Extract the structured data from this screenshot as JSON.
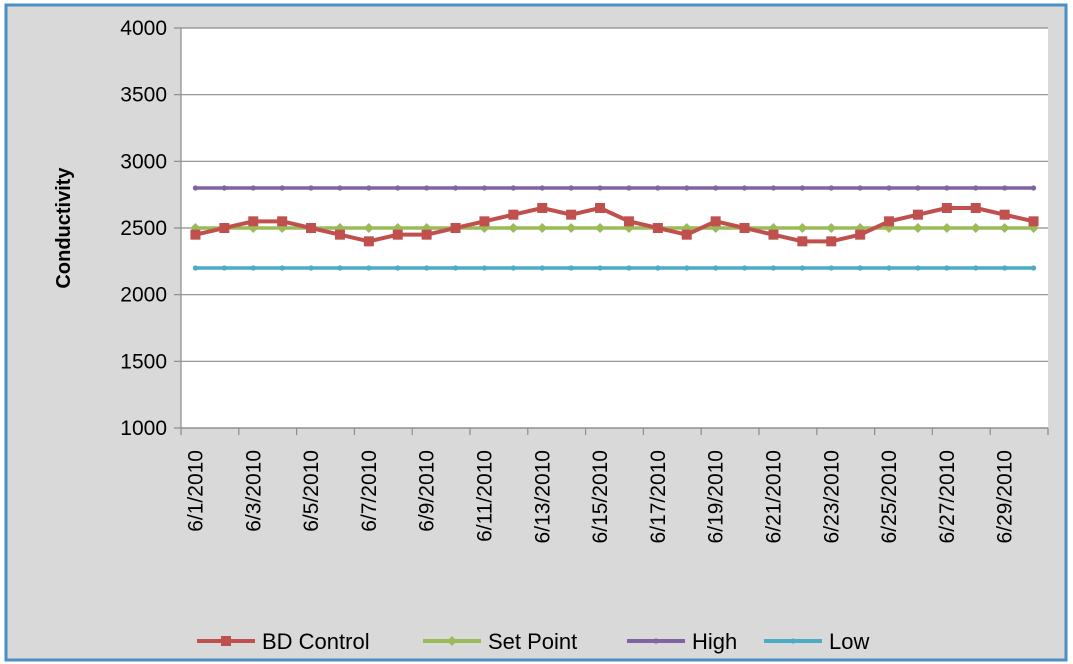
{
  "chart_data": {
    "type": "line",
    "title": "",
    "xlabel": "",
    "ylabel": "Conductivity",
    "ylim": [
      1000,
      4000
    ],
    "yticks": [
      1000,
      1500,
      2000,
      2500,
      3000,
      3500,
      4000
    ],
    "grid": "horizontal",
    "legend_position": "bottom",
    "x": [
      "6/1/2010",
      "6/2/2010",
      "6/3/2010",
      "6/4/2010",
      "6/5/2010",
      "6/6/2010",
      "6/7/2010",
      "6/8/2010",
      "6/9/2010",
      "6/10/2010",
      "6/11/2010",
      "6/12/2010",
      "6/13/2010",
      "6/14/2010",
      "6/15/2010",
      "6/16/2010",
      "6/17/2010",
      "6/18/2010",
      "6/19/2010",
      "6/20/2010",
      "6/21/2010",
      "6/22/2010",
      "6/23/2010",
      "6/24/2010",
      "6/25/2010",
      "6/26/2010",
      "6/27/2010",
      "6/28/2010",
      "6/29/2010",
      "6/30/2010"
    ],
    "xtick_labels": [
      "6/1/2010",
      "6/3/2010",
      "6/5/2010",
      "6/7/2010",
      "6/9/2010",
      "6/11/2010",
      "6/13/2010",
      "6/15/2010",
      "6/17/2010",
      "6/19/2010",
      "6/21/2010",
      "6/23/2010",
      "6/25/2010",
      "6/27/2010",
      "6/29/2010"
    ],
    "series": [
      {
        "name": "BD Control",
        "color": "#c0504d",
        "marker": "square",
        "values": [
          2450,
          2500,
          2550,
          2550,
          2500,
          2450,
          2400,
          2450,
          2450,
          2500,
          2550,
          2600,
          2650,
          2600,
          2650,
          2550,
          2500,
          2450,
          2550,
          2500,
          2450,
          2400,
          2400,
          2450,
          2550,
          2600,
          2650,
          2650,
          2600,
          2550
        ]
      },
      {
        "name": "Set Point",
        "color": "#9bbb59",
        "marker": "diamond",
        "values": [
          2500,
          2500,
          2500,
          2500,
          2500,
          2500,
          2500,
          2500,
          2500,
          2500,
          2500,
          2500,
          2500,
          2500,
          2500,
          2500,
          2500,
          2500,
          2500,
          2500,
          2500,
          2500,
          2500,
          2500,
          2500,
          2500,
          2500,
          2500,
          2500,
          2500
        ]
      },
      {
        "name": "High",
        "color": "#8064a2",
        "marker": "dot",
        "values": [
          2800,
          2800,
          2800,
          2800,
          2800,
          2800,
          2800,
          2800,
          2800,
          2800,
          2800,
          2800,
          2800,
          2800,
          2800,
          2800,
          2800,
          2800,
          2800,
          2800,
          2800,
          2800,
          2800,
          2800,
          2800,
          2800,
          2800,
          2800,
          2800,
          2800
        ]
      },
      {
        "name": "Low",
        "color": "#4bacc6",
        "marker": "dot",
        "values": [
          2200,
          2200,
          2200,
          2200,
          2200,
          2200,
          2200,
          2200,
          2200,
          2200,
          2200,
          2200,
          2200,
          2200,
          2200,
          2200,
          2200,
          2200,
          2200,
          2200,
          2200,
          2200,
          2200,
          2200,
          2200,
          2200,
          2200,
          2200,
          2200,
          2200
        ]
      }
    ]
  },
  "colors": {
    "chart_area": "#d9d9d9",
    "plot_area": "#ffffff",
    "frame_border": "#4a90c4",
    "gridline": "#8c8c8c"
  }
}
